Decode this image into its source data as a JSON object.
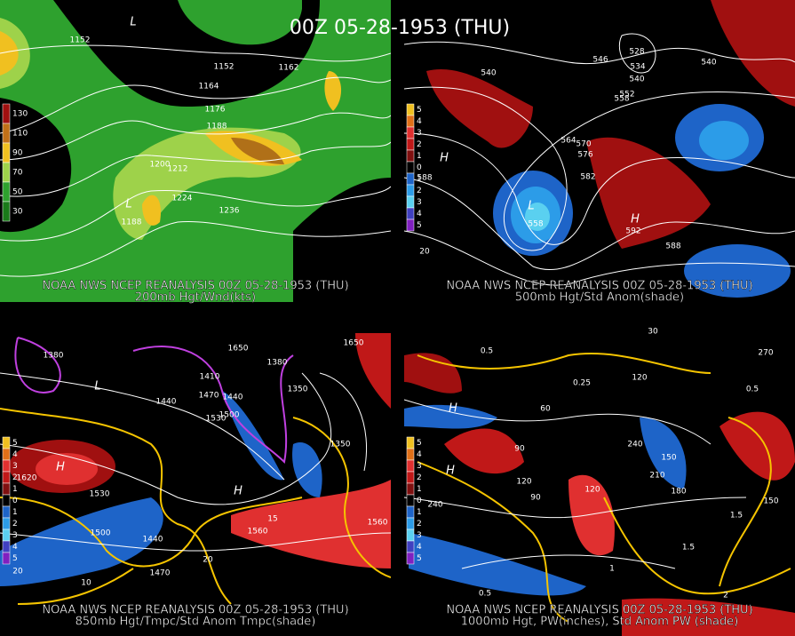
{
  "title": "00Z 05-28-1953 (THU)",
  "panels": [
    {
      "header": "NOAA NWS NCEP REANALYSIS 00Z 05-28-1953 (THU)",
      "caption": "200mb Hgt/Wnd(kts)",
      "legend": [
        "130",
        "110",
        "90",
        "70",
        "50",
        "30"
      ],
      "labels": [
        "1152",
        "1152",
        "1164",
        "1162",
        "1176",
        "1188",
        "1200",
        "1212",
        "1224",
        "1236",
        "1188",
        "L",
        "L"
      ]
    },
    {
      "header": "NOAA NWS NCEP REANALYSIS 00Z 05-28-1953 (THU)",
      "caption": "500mb Hgt/Std Anom(shade)",
      "legend": [
        "5",
        "4",
        "3",
        "2",
        "1",
        "0",
        "1",
        "2",
        "3",
        "4",
        "5"
      ],
      "labels": [
        "540",
        "546",
        "528",
        "534",
        "540",
        "540",
        "552",
        "558",
        "564",
        "570",
        "576",
        "582",
        "588",
        "588",
        "558",
        "592",
        "20",
        "H",
        "L",
        "H"
      ]
    },
    {
      "header": "NOAA NWS NCEP REANALYSIS 00Z 05-28-1953 (THU)",
      "caption": "850mb Hgt/Tmpc/Std Anom Tmpc(shade)",
      "legend": [
        "5",
        "4",
        "3",
        "2",
        "1",
        "0",
        "1",
        "2",
        "3",
        "4",
        "5"
      ],
      "labels": [
        "1380",
        "1410",
        "1440",
        "1470",
        "1500",
        "1530",
        "1440",
        "1380",
        "1350",
        "1350",
        "1620",
        "1530",
        "1500",
        "1440",
        "1470",
        "1560",
        "1560",
        "1650",
        "1650",
        "20",
        "10",
        "15",
        "20",
        "H",
        "H",
        "L"
      ]
    },
    {
      "header": "NOAA NWS NCEP REANALYSIS 00Z 05-28-1953 (THU)",
      "caption": "1000mb Hgt, PW(inches), Std Anom PW (shade)",
      "legend": [
        "5",
        "4",
        "3",
        "2",
        "1",
        "0",
        "1",
        "2",
        "3",
        "4",
        "5"
      ],
      "labels": [
        "30",
        "0.5",
        "120",
        "60",
        "0.5",
        "90",
        "240",
        "150",
        "210",
        "180",
        "120",
        "90",
        "120",
        "150",
        "240",
        "1.5",
        "1.5",
        "0.5",
        "1",
        "2",
        "270",
        "0.25",
        "H",
        "H"
      ]
    }
  ]
}
